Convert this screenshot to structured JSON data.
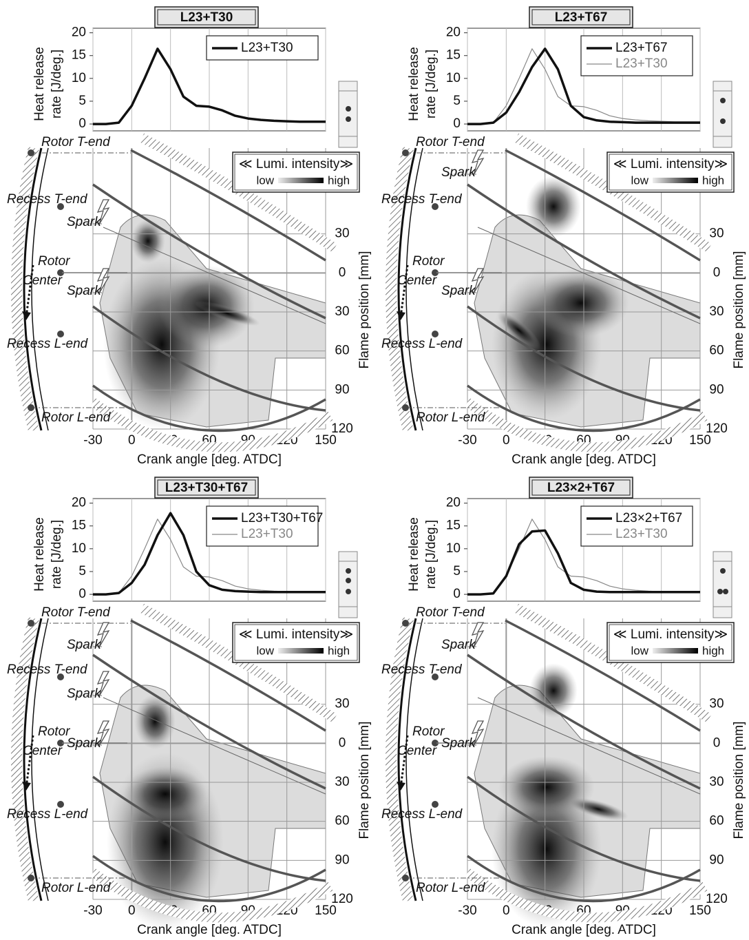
{
  "chart_data": [
    {
      "type": "line",
      "title": "L23+T30",
      "x": [
        -30,
        -20,
        -10,
        0,
        10,
        20,
        30,
        40,
        50,
        60,
        70,
        80,
        90,
        100,
        110,
        120,
        130,
        140,
        150
      ],
      "series": [
        {
          "name": "L23+T30",
          "color": "#111111",
          "values": [
            0,
            0,
            0.3,
            4,
            10,
            16.5,
            12,
            6,
            4,
            3.8,
            3,
            1.8,
            1.2,
            0.9,
            0.7,
            0.6,
            0.5,
            0.5,
            0.5
          ]
        }
      ],
      "xlim": [
        -30,
        150
      ],
      "xticks": [
        -30,
        0,
        30,
        60,
        90,
        120,
        150
      ],
      "ylim": [
        -1.5,
        21
      ],
      "yticks": [
        0,
        5,
        10,
        15,
        20
      ],
      "ylabel": [
        "Heat release",
        "rate  [J/deg.]"
      ],
      "xlabel": "Crank angle [deg. ATDC]",
      "y2label": "Flame position [mm]",
      "y2lim": [
        -96,
        120
      ],
      "y2ticks": [
        {
          "value": -30,
          "label": "30"
        },
        0,
        30,
        60,
        90,
        120
      ],
      "legend_title": "≪ Lumi. intensity≫",
      "colorbar_labels": [
        "low",
        "high"
      ],
      "annotations": [
        "Rotor T-end",
        "Recess T-end",
        "Rotor",
        "Center",
        "Recess L-end",
        "Rotor L-end"
      ],
      "sparks": [
        "Spark",
        "Spark"
      ]
    },
    {
      "type": "line",
      "title": "L23+T67",
      "x": [
        -30,
        -20,
        -10,
        0,
        10,
        20,
        30,
        40,
        50,
        60,
        70,
        80,
        90,
        100,
        110,
        120,
        130,
        140,
        150
      ],
      "series": [
        {
          "name": "L23+T67",
          "color": "#111111",
          "values": [
            0,
            0,
            0.3,
            2.5,
            7,
            12.5,
            16.5,
            12,
            4,
            1.5,
            0.8,
            0.5,
            0.4,
            0.3,
            0.3,
            0.3,
            0.3,
            0.3,
            0.3
          ]
        },
        {
          "name": "L23+T30",
          "color": "#888888",
          "values": [
            0,
            0,
            0.3,
            4,
            10,
            16.5,
            12,
            6,
            4,
            3.8,
            3,
            1.8,
            1.2,
            0.9,
            0.7,
            0.6,
            0.5,
            0.5,
            0.5
          ]
        }
      ],
      "xlim": [
        -30,
        150
      ],
      "xticks": [
        -30,
        0,
        30,
        60,
        90,
        120,
        150
      ],
      "ylim": [
        -1.5,
        21
      ],
      "yticks": [
        0,
        5,
        10,
        15,
        20
      ],
      "ylabel": [
        "Heat release",
        "rate  [J/deg.]"
      ],
      "xlabel": "Crank angle [deg. ATDC]",
      "y2label": "Flame position [mm]",
      "y2lim": [
        -96,
        120
      ],
      "y2ticks": [
        {
          "value": -30,
          "label": "30"
        },
        0,
        30,
        60,
        90,
        120
      ],
      "legend_title": "≪ Lumi. intensity≫",
      "colorbar_labels": [
        "low",
        "high"
      ],
      "annotations": [
        "Rotor T-end",
        "Recess T-end",
        "Rotor",
        "Center",
        "Recess L-end",
        "Rotor L-end"
      ],
      "sparks": [
        "Spark",
        "Spark"
      ]
    },
    {
      "type": "line",
      "title": "L23+T30+T67",
      "x": [
        -30,
        -20,
        -10,
        0,
        10,
        20,
        30,
        40,
        50,
        60,
        70,
        80,
        90,
        100,
        110,
        120,
        130,
        140,
        150
      ],
      "series": [
        {
          "name": "L23+T30+T67",
          "color": "#111111",
          "values": [
            0,
            0,
            0.3,
            2.5,
            6.5,
            13,
            17.8,
            13,
            5,
            2,
            1,
            0.7,
            0.6,
            0.5,
            0.5,
            0.5,
            0.5,
            0.5,
            0.5
          ]
        },
        {
          "name": "L23+T30",
          "color": "#888888",
          "values": [
            0,
            0,
            0.3,
            4,
            10,
            16.5,
            12,
            6,
            4,
            3.8,
            3,
            1.8,
            1.2,
            0.9,
            0.7,
            0.6,
            0.5,
            0.5,
            0.5
          ]
        }
      ],
      "xlim": [
        -30,
        150
      ],
      "xticks": [
        -30,
        0,
        30,
        60,
        90,
        120,
        150
      ],
      "ylim": [
        -1.5,
        21
      ],
      "yticks": [
        0,
        5,
        10,
        15,
        20
      ],
      "ylabel": [
        "Heat release",
        "rate  [J/deg.]"
      ],
      "xlabel": "Crank angle [deg. ATDC]",
      "y2label": "Flame position [mm]",
      "y2lim": [
        -96,
        120
      ],
      "y2ticks": [
        {
          "value": -30,
          "label": "30"
        },
        0,
        30,
        60,
        90,
        120
      ],
      "legend_title": "≪ Lumi. intensity≫",
      "colorbar_labels": [
        "low",
        "high"
      ],
      "annotations": [
        "Rotor T-end",
        "Recess T-end",
        "Rotor",
        "Center",
        "Recess L-end",
        "Rotor L-end"
      ],
      "sparks": [
        "Spark",
        "Spark",
        "Spark"
      ]
    },
    {
      "type": "line",
      "title": "L23×2+T67",
      "x": [
        -30,
        -20,
        -10,
        0,
        10,
        20,
        30,
        40,
        50,
        60,
        70,
        80,
        90,
        100,
        110,
        120,
        130,
        140,
        150
      ],
      "series": [
        {
          "name": "L23×2+T67",
          "color": "#111111",
          "values": [
            0,
            0,
            0.2,
            4,
            11,
            13.8,
            14,
            9,
            2.5,
            1,
            0.6,
            0.5,
            0.5,
            0.5,
            0.5,
            0.5,
            0.5,
            0.5,
            0.5
          ]
        },
        {
          "name": "L23+T30",
          "color": "#888888",
          "values": [
            0,
            0,
            0.3,
            4,
            10,
            16.5,
            12,
            6,
            4,
            3.8,
            3,
            1.8,
            1.2,
            0.9,
            0.7,
            0.6,
            0.5,
            0.5,
            0.5
          ]
        }
      ],
      "xlim": [
        -30,
        150
      ],
      "xticks": [
        -30,
        0,
        30,
        60,
        90,
        120,
        150
      ],
      "ylim": [
        -1.5,
        21
      ],
      "yticks": [
        0,
        5,
        10,
        15,
        20
      ],
      "ylabel": [
        "Heat release",
        "rate  [J/deg.]"
      ],
      "xlabel": "Crank angle [deg. ATDC]",
      "y2label": "Flame position [mm]",
      "y2lim": [
        -96,
        120
      ],
      "y2ticks": [
        {
          "value": -30,
          "label": "30"
        },
        0,
        30,
        60,
        90,
        120
      ],
      "legend_title": "≪ Lumi. intensity≫",
      "colorbar_labels": [
        "low",
        "high"
      ],
      "annotations": [
        "Rotor T-end",
        "Recess T-end",
        "Rotor",
        "Center",
        "Recess L-end",
        "Rotor L-end"
      ],
      "sparks": [
        "Spark",
        "Spark"
      ]
    }
  ]
}
